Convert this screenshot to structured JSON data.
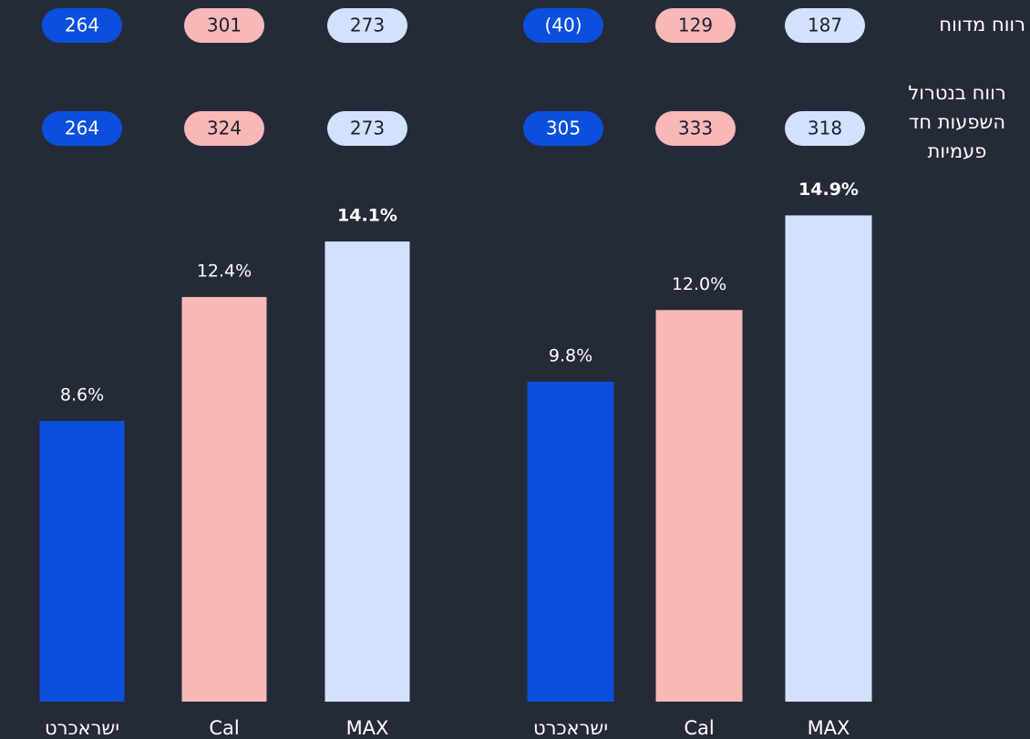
{
  "row_labels": [
    "רווח מדווח",
    "רווח בנטרול השפעות חד פעמיות"
  ],
  "chart_data": [
    {
      "type": "bar",
      "categories": [
        "ישראכרט",
        "Cal",
        "MAX"
      ],
      "values": [
        8.6,
        12.4,
        14.1
      ],
      "value_labels": [
        "8.6%",
        "12.4%",
        "14.1%"
      ],
      "colors": [
        "#0b4fdc",
        "#f8b8b8",
        "#d2e2fd"
      ],
      "label_bold": [
        false,
        false,
        true
      ],
      "ylim": [
        0,
        16
      ],
      "pill_rows": [
        [
          264,
          301,
          273
        ],
        [
          264,
          324,
          273
        ]
      ]
    },
    {
      "type": "bar",
      "categories": [
        "ישראכרט",
        "Cal",
        "MAX"
      ],
      "values": [
        9.8,
        12.0,
        14.9
      ],
      "value_labels": [
        "9.8%",
        "12.0%",
        "14.9%"
      ],
      "colors": [
        "#0b4fdc",
        "#f8b8b8",
        "#d2e2fd"
      ],
      "label_bold": [
        false,
        false,
        true
      ],
      "ylim": [
        0,
        16
      ],
      "pill_rows": [
        [
          {
            "value": -40,
            "label": "(40)"
          },
          129,
          187
        ],
        [
          305,
          333,
          318
        ]
      ]
    }
  ]
}
